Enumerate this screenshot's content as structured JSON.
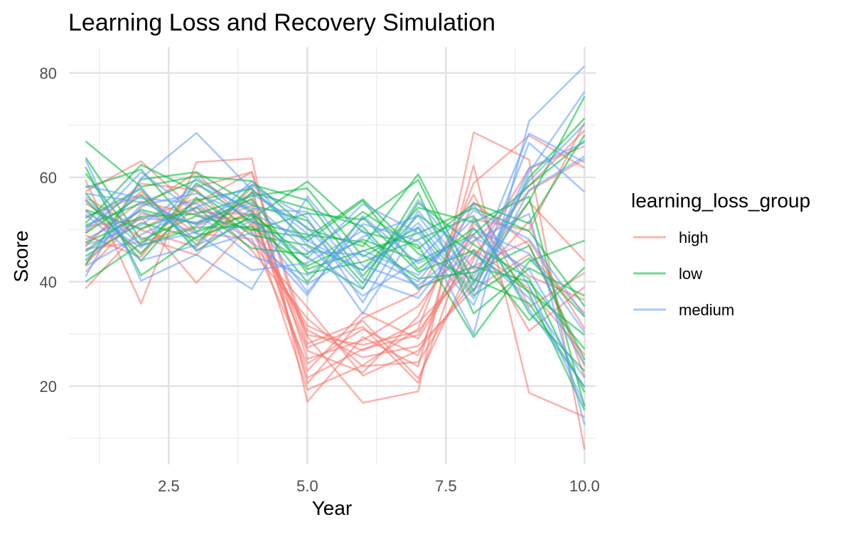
{
  "chart_data": {
    "type": "line",
    "title": "Learning Loss and Recovery Simulation",
    "xlabel": "Year",
    "ylabel": "Score",
    "xlim": [
      0.7,
      10.2
    ],
    "ylim": [
      5,
      85
    ],
    "x": [
      1,
      2,
      3,
      4,
      5,
      6,
      7,
      8,
      9,
      10
    ],
    "xticks": [
      2.5,
      5.0,
      7.5,
      10.0
    ],
    "xtick_labels": [
      "2.5",
      "5.0",
      "7.5",
      "10.0"
    ],
    "xminor": [
      1.25,
      3.75,
      6.25,
      8.75
    ],
    "yticks": [
      20,
      40,
      60,
      80
    ],
    "ytick_labels": [
      "20",
      "40",
      "60",
      "80"
    ],
    "yminor": [
      10,
      30,
      50,
      70
    ],
    "grid": true,
    "legend": {
      "title": "learning_loss_group",
      "position": "right",
      "entries": [
        {
          "label": "high",
          "color": "#F8766D"
        },
        {
          "label": "low",
          "color": "#00BA38"
        },
        {
          "label": "medium",
          "color": "#619CFF"
        }
      ]
    },
    "line_opacity": 0.55,
    "series": [
      {
        "group": "high",
        "color": "#F8766D",
        "values": [
          38.7,
          50.2,
          55.1,
          61.0,
          29.5,
          16.8,
          19.0,
          68.6,
          63.4,
          7.9
        ]
      },
      {
        "group": "high",
        "color": "#F8766D",
        "values": [
          59.5,
          35.8,
          62.9,
          63.6,
          17.0,
          29.4,
          23.8,
          62.3,
          18.7,
          14.1
        ]
      },
      {
        "group": "high",
        "color": "#F8766D",
        "values": [
          44.0,
          52.3,
          39.8,
          51.3,
          19.3,
          24.0,
          31.0,
          58.9,
          68.0,
          61.8
        ]
      },
      {
        "group": "high",
        "color": "#F8766D",
        "values": [
          46.3,
          47.6,
          50.7,
          54.6,
          21.6,
          27.1,
          29.8,
          47.6,
          58.4,
          69.0
        ]
      },
      {
        "group": "high",
        "color": "#F8766D",
        "values": [
          52.4,
          56.7,
          49.3,
          48.2,
          24.3,
          30.9,
          25.9,
          52.0,
          49.8,
          70.5
        ]
      },
      {
        "group": "high",
        "color": "#F8766D",
        "values": [
          57.3,
          63.1,
          53.4,
          52.9,
          26.8,
          22.6,
          33.4,
          55.2,
          47.1,
          23.9
        ]
      },
      {
        "group": "high",
        "color": "#F8766D",
        "values": [
          48.9,
          44.7,
          58.2,
          61.0,
          28.1,
          32.5,
          21.5,
          44.3,
          61.7,
          66.0
        ]
      },
      {
        "group": "high",
        "color": "#F8766D",
        "values": [
          43.3,
          54.2,
          60.9,
          50.7,
          30.7,
          25.5,
          27.7,
          38.6,
          45.2,
          34.0
        ]
      },
      {
        "group": "high",
        "color": "#F8766D",
        "values": [
          55.0,
          48.5,
          45.1,
          57.2,
          25.2,
          28.8,
          35.3,
          49.1,
          30.6,
          39.0
        ]
      },
      {
        "group": "high",
        "color": "#F8766D",
        "values": [
          50.6,
          51.9,
          56.0,
          46.0,
          33.0,
          23.8,
          24.6,
          41.7,
          55.3,
          44.0
        ]
      },
      {
        "group": "high",
        "color": "#F8766D",
        "values": [
          46.8,
          57.3,
          47.8,
          53.8,
          22.9,
          34.1,
          29.1,
          46.2,
          38.7,
          26.0
        ]
      },
      {
        "group": "high",
        "color": "#F8766D",
        "values": [
          53.7,
          45.6,
          54.3,
          49.5,
          31.6,
          26.8,
          32.2,
          43.0,
          47.9,
          31.0
        ]
      },
      {
        "group": "high",
        "color": "#F8766D",
        "values": [
          41.9,
          53.1,
          51.2,
          55.7,
          27.4,
          31.4,
          20.6,
          51.3,
          41.1,
          36.5
        ]
      },
      {
        "group": "high",
        "color": "#F8766D",
        "values": [
          49.4,
          58.8,
          57.6,
          47.3,
          35.1,
          22.0,
          26.8,
          39.8,
          51.6,
          21.8
        ]
      },
      {
        "group": "high",
        "color": "#F8766D",
        "values": [
          56.2,
          49.9,
          46.6,
          58.1,
          20.5,
          33.0,
          37.9,
          56.7,
          35.2,
          41.7
        ]
      },
      {
        "group": "high",
        "color": "#F8766D",
        "values": [
          47.5,
          55.4,
          52.7,
          51.9,
          29.8,
          27.9,
          30.5,
          44.9,
          57.4,
          63.5
        ]
      },
      {
        "group": "low",
        "color": "#00BA38",
        "values": [
          66.9,
          58.2,
          60.2,
          59.3,
          50.1,
          46.8,
          60.6,
          39.9,
          55.4,
          75.5
        ]
      },
      {
        "group": "low",
        "color": "#00BA38",
        "values": [
          62.0,
          41.2,
          48.6,
          52.1,
          59.2,
          49.5,
          47.0,
          29.4,
          43.9,
          47.9
        ]
      },
      {
        "group": "low",
        "color": "#00BA38",
        "values": [
          40.0,
          47.3,
          55.6,
          57.8,
          47.8,
          55.5,
          42.4,
          50.3,
          37.8,
          15.4
        ]
      },
      {
        "group": "low",
        "color": "#00BA38",
        "values": [
          58.0,
          61.5,
          49.6,
          53.0,
          44.6,
          38.6,
          55.1,
          47.1,
          40.6,
          18.8
        ]
      },
      {
        "group": "low",
        "color": "#00BA38",
        "values": [
          51.2,
          62.4,
          57.3,
          49.8,
          53.1,
          51.9,
          59.5,
          38.2,
          60.0,
          71.3
        ]
      },
      {
        "group": "low",
        "color": "#00BA38",
        "values": [
          45.9,
          53.8,
          51.1,
          55.9,
          41.6,
          43.8,
          48.1,
          52.6,
          34.0,
          22.9
        ]
      },
      {
        "group": "low",
        "color": "#00BA38",
        "values": [
          55.6,
          45.2,
          58.9,
          51.4,
          49.0,
          47.6,
          40.6,
          41.8,
          46.9,
          25.0
        ]
      },
      {
        "group": "low",
        "color": "#00BA38",
        "values": [
          49.3,
          56.5,
          47.1,
          58.6,
          55.6,
          41.1,
          52.8,
          45.3,
          38.1,
          29.8
        ]
      },
      {
        "group": "low",
        "color": "#00BA38",
        "values": [
          53.8,
          50.1,
          54.2,
          46.4,
          45.3,
          53.4,
          46.3,
          55.0,
          51.2,
          68.1
        ]
      },
      {
        "group": "low",
        "color": "#00BA38",
        "values": [
          43.2,
          59.6,
          61.0,
          54.7,
          51.7,
          39.7,
          57.1,
          33.9,
          42.6,
          37.3
        ]
      },
      {
        "group": "low",
        "color": "#00BA38",
        "values": [
          60.8,
          46.9,
          50.4,
          50.5,
          43.0,
          48.1,
          44.0,
          49.1,
          58.4,
          67.0
        ]
      },
      {
        "group": "low",
        "color": "#00BA38",
        "values": [
          47.4,
          52.5,
          53.0,
          56.4,
          57.9,
          44.8,
          50.4,
          37.4,
          44.5,
          33.3
        ]
      },
      {
        "group": "low",
        "color": "#00BA38",
        "values": [
          52.2,
          57.8,
          45.9,
          52.8,
          39.9,
          52.3,
          41.9,
          46.0,
          32.6,
          42.7
        ]
      },
      {
        "group": "low",
        "color": "#00BA38",
        "values": [
          57.0,
          44.0,
          56.1,
          48.9,
          47.0,
          42.2,
          54.2,
          51.4,
          56.3,
          16.0
        ]
      },
      {
        "group": "low",
        "color": "#00BA38",
        "values": [
          44.9,
          51.3,
          48.3,
          57.1,
          54.0,
          50.6,
          38.8,
          42.9,
          40.0,
          27.1
        ]
      },
      {
        "group": "low",
        "color": "#00BA38",
        "values": [
          50.8,
          55.0,
          59.5,
          53.5,
          42.4,
          45.9,
          49.3,
          54.1,
          49.7,
          35.3
        ]
      },
      {
        "group": "low",
        "color": "#00BA38",
        "values": [
          63.8,
          48.0,
          52.6,
          50.0,
          48.5,
          55.8,
          45.4,
          40.5,
          35.9,
          19.8
        ]
      },
      {
        "group": "medium",
        "color": "#619CFF",
        "values": [
          41.0,
          59.8,
          68.5,
          57.6,
          49.2,
          33.9,
          50.5,
          30.0,
          70.8,
          81.3
        ]
      },
      {
        "group": "medium",
        "color": "#619CFF",
        "values": [
          63.4,
          40.2,
          45.2,
          38.6,
          56.3,
          43.1,
          39.3,
          47.9,
          53.0,
          12.6
        ]
      },
      {
        "group": "medium",
        "color": "#619CFF",
        "values": [
          44.2,
          54.6,
          56.9,
          52.4,
          38.0,
          51.1,
          47.8,
          35.5,
          61.0,
          76.4
        ]
      },
      {
        "group": "medium",
        "color": "#619CFF",
        "values": [
          55.8,
          47.0,
          49.5,
          59.3,
          46.9,
          37.3,
          44.2,
          54.8,
          39.2,
          16.4
        ]
      },
      {
        "group": "medium",
        "color": "#619CFF",
        "values": [
          49.8,
          61.0,
          53.2,
          44.9,
          41.3,
          48.6,
          52.6,
          39.3,
          66.6,
          57.2
        ]
      },
      {
        "group": "medium",
        "color": "#619CFF",
        "values": [
          47.0,
          50.8,
          58.5,
          54.0,
          53.4,
          40.6,
          36.9,
          50.0,
          45.4,
          30.3
        ]
      },
      {
        "group": "medium",
        "color": "#619CFF",
        "values": [
          52.9,
          44.1,
          47.0,
          51.7,
          44.5,
          54.9,
          49.4,
          36.8,
          57.6,
          64.0
        ]
      },
      {
        "group": "medium",
        "color": "#619CFF",
        "values": [
          58.4,
          56.0,
          55.0,
          47.6,
          39.5,
          46.0,
          41.3,
          52.2,
          34.7,
          19.9
        ]
      },
      {
        "group": "medium",
        "color": "#619CFF",
        "values": [
          45.8,
          52.2,
          51.4,
          56.8,
          50.4,
          38.8,
          55.7,
          42.4,
          68.4,
          62.9
        ]
      },
      {
        "group": "medium",
        "color": "#619CFF",
        "values": [
          50.3,
          58.1,
          46.1,
          49.4,
          37.4,
          52.6,
          43.5,
          48.6,
          42.3,
          24.2
        ]
      },
      {
        "group": "medium",
        "color": "#619CFF",
        "values": [
          53.5,
          46.5,
          60.0,
          53.1,
          47.9,
          42.2,
          51.3,
          38.0,
          61.8,
          66.7
        ]
      },
      {
        "group": "medium",
        "color": "#619CFF",
        "values": [
          48.1,
          53.5,
          49.2,
          42.2,
          43.6,
          49.8,
          38.5,
          45.7,
          36.9,
          21.6
        ]
      },
      {
        "group": "medium",
        "color": "#619CFF",
        "values": [
          43.0,
          49.0,
          54.3,
          58.4,
          52.2,
          36.0,
          53.6,
          40.8,
          59.3,
          70.2
        ]
      },
      {
        "group": "medium",
        "color": "#619CFF",
        "values": [
          56.9,
          55.2,
          50.9,
          55.2,
          45.8,
          45.2,
          40.1,
          53.7,
          48.1,
          33.5
        ]
      }
    ]
  }
}
